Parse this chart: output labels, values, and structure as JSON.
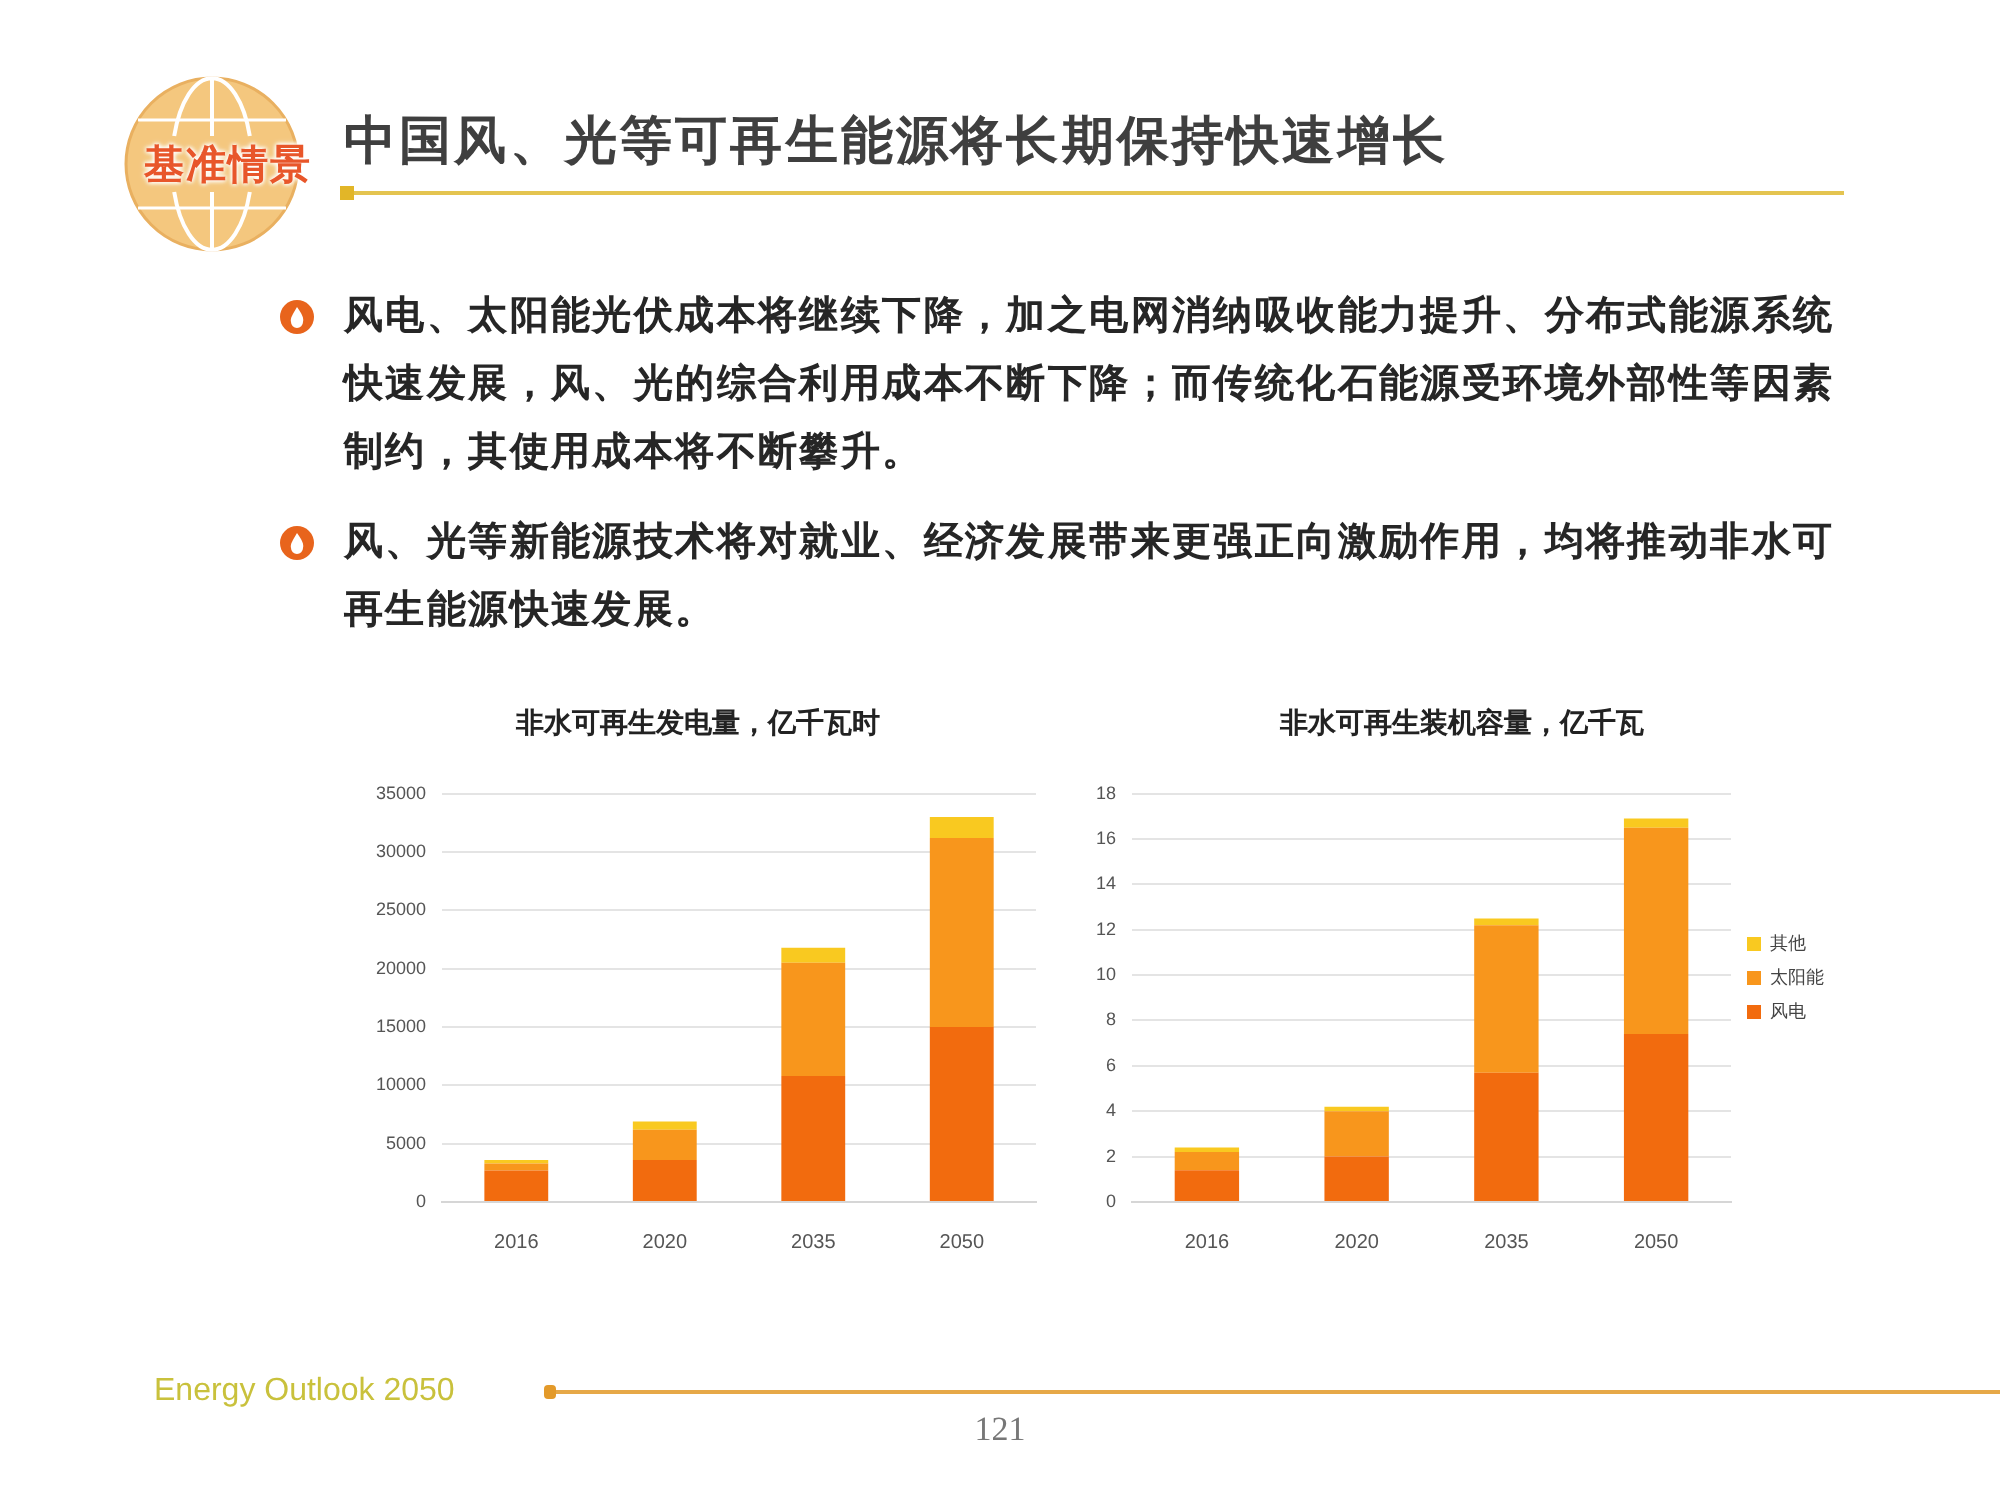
{
  "chart_data": [
    {
      "type": "other",
      "title": "中国风、光等可再生能源将长期保持快速增长",
      "annotations": [
        "基准情景",
        "风电、太阳能光伏成本将继续下降，加之电网消纳吸收能力提升、分布式能源系统快速发展，风、光的综合利用成本不断下降；而传统化石能源受环境外部性等因素制约，其使用成本将不断攀升。",
        "风、光等新能源技术将对就业、经济发展带来更强正向激励作用，均将推动非水可再生能源快速发展。",
        "Energy Outlook 2050",
        "121"
      ]
    },
    {
      "type": "bar",
      "title": "非水可再生发电量，亿千瓦时",
      "categories": [
        "2016",
        "2020",
        "2035",
        "2050"
      ],
      "stacked": true,
      "series": [
        {
          "color": "#f26b0e",
          "values": [
            2700,
            3600,
            10800,
            15000
          ]
        },
        {
          "color": "#f8961c",
          "values": [
            600,
            2600,
            9700,
            16200
          ]
        },
        {
          "color": "#f9c920",
          "values": [
            300,
            700,
            1300,
            1800
          ]
        }
      ],
      "ylim": [
        0,
        35000
      ],
      "yticks": [
        0,
        5000,
        10000,
        15000,
        20000,
        25000,
        30000,
        35000
      ],
      "grid": "y"
    },
    {
      "type": "bar",
      "title": "非水可再生装机容量，亿千瓦",
      "categories": [
        "2016",
        "2020",
        "2035",
        "2050"
      ],
      "stacked": true,
      "series": [
        {
          "name": "风电",
          "color": "#f26b0e",
          "values": [
            1.4,
            2.0,
            5.7,
            7.4
          ]
        },
        {
          "name": "太阳能",
          "color": "#f8961c",
          "values": [
            0.8,
            2.0,
            6.5,
            9.1
          ]
        },
        {
          "name": "其他",
          "color": "#f9c920",
          "values": [
            0.2,
            0.2,
            0.3,
            0.4
          ]
        }
      ],
      "ylim": [
        0,
        18
      ],
      "yticks": [
        0,
        2,
        4,
        6,
        8,
        10,
        12,
        14,
        16,
        18
      ],
      "grid": "y",
      "legend": "right"
    }
  ]
}
